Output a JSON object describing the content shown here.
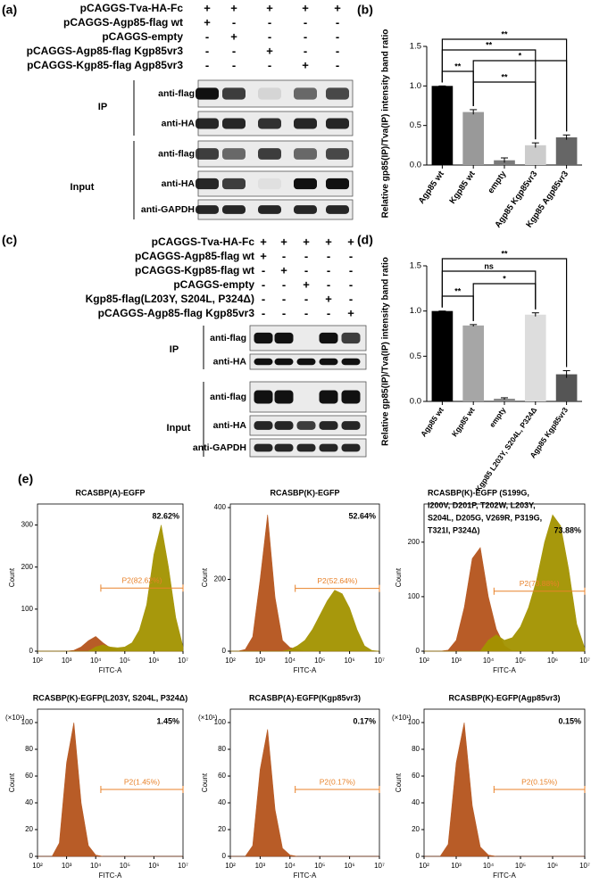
{
  "panel_a": {
    "label": "(a)",
    "rows": [
      {
        "name": "pCAGGS-Tva-HA-Fc",
        "signs": [
          "+",
          "+",
          "+",
          "+",
          "+"
        ]
      },
      {
        "name": "pCAGGS-Agp85-flag wt",
        "signs": [
          "+",
          "-",
          "-",
          "-",
          "-"
        ]
      },
      {
        "name": "pCAGGS-empty",
        "signs": [
          "-",
          "+",
          "-",
          "-",
          "-"
        ]
      },
      {
        "name": "pCAGGS-Agp85-flag Kgp85vr3",
        "signs": [
          "-",
          "-",
          "+",
          "-",
          "-"
        ]
      },
      {
        "name": "pCAGGS-Kgp85-flag Agp85vr3",
        "signs": [
          "-",
          "-",
          "-",
          "+",
          "-"
        ]
      }
    ],
    "sections": [
      {
        "name": "IP",
        "blots": [
          "anti-flag",
          "anti-HA"
        ]
      },
      {
        "name": "Input",
        "blots": [
          "anti-flag",
          "anti-HA",
          "anti-GAPDH"
        ]
      }
    ]
  },
  "panel_c": {
    "label": "(c)",
    "rows": [
      {
        "name": "pCAGGS-Tva-HA-Fc",
        "signs": [
          "+",
          "+",
          "+",
          "+",
          "+"
        ]
      },
      {
        "name": "pCAGGS-Agp85-flag wt",
        "signs": [
          "+",
          "-",
          "-",
          "-",
          "-"
        ]
      },
      {
        "name": "pCAGGS-Kgp85-flag wt",
        "signs": [
          "-",
          "+",
          "-",
          "-",
          "-"
        ]
      },
      {
        "name": "pCAGGS-empty",
        "signs": [
          "-",
          "-",
          "+",
          "-",
          "-"
        ]
      },
      {
        "name": "Kgp85-flag(L203Y, S204L, P324Δ)",
        "signs": [
          "-",
          "-",
          "-",
          "+",
          "-"
        ]
      },
      {
        "name": "pCAGGS-Agp85-flag Kgp85vr3",
        "signs": [
          "-",
          "-",
          "-",
          "-",
          "+"
        ]
      }
    ],
    "sections": [
      {
        "name": "IP",
        "blots": [
          "anti-flag",
          "anti-HA"
        ]
      },
      {
        "name": "Input",
        "blots": [
          "anti-flag",
          "anti-HA",
          "anti-GAPDH"
        ]
      }
    ]
  },
  "panel_e": {
    "label": "(e)"
  },
  "chart_data": [
    {
      "type": "bar",
      "panel_label": "(b)",
      "ylabel": "Relative gp85(IP)/Tva(IP) intensity band ratio",
      "categories": [
        "Agp85 wt",
        "Kgp85 wt",
        "empty",
        "Agp85 Kgp85vr3",
        "Kgp85 Agp85vr3"
      ],
      "values": [
        1.0,
        0.67,
        0.06,
        0.25,
        0.35
      ],
      "errors": [
        0,
        0.03,
        0.03,
        0.03,
        0.03
      ],
      "colors": [
        "#000000",
        "#999999",
        "#7a7a7a",
        "#cccccc",
        "#666666"
      ],
      "ylim": [
        0,
        1.5
      ],
      "yticks": [
        {
          "value": 0,
          "label": "0.0"
        },
        {
          "value": 0.5,
          "label": "0.5"
        },
        {
          "value": 1,
          "label": "1.0"
        },
        {
          "value": 1.5,
          "label": "1.5"
        }
      ],
      "significance": [
        {
          "from": 0,
          "to": 4,
          "label": "**"
        },
        {
          "from": 0,
          "to": 3,
          "label": "**"
        },
        {
          "from": 1,
          "to": 4,
          "label": "*"
        },
        {
          "from": 0,
          "to": 1,
          "label": "**"
        },
        {
          "from": 1,
          "to": 3,
          "label": "**"
        }
      ]
    },
    {
      "type": "bar",
      "panel_label": "(d)",
      "ylabel": "Relative gp85(IP)/Tva(IP) intensity band ratio",
      "categories": [
        "Agp85 wt",
        "Kgp85 wt",
        "empty",
        "Kgp85 L203Y, S204L, P324Δ",
        "Agp85 Kgp85vr3"
      ],
      "values": [
        1.0,
        0.84,
        0.03,
        0.96,
        0.3
      ],
      "errors": [
        0,
        0.01,
        0.01,
        0.02,
        0.04
      ],
      "colors": [
        "#000000",
        "#a6a6a6",
        "#8a8a8a",
        "#dddddd",
        "#555555"
      ],
      "ylim": [
        0,
        1.5
      ],
      "yticks": [
        {
          "value": 0,
          "label": "0.0"
        },
        {
          "value": 0.5,
          "label": "0.5"
        },
        {
          "value": 1,
          "label": "1.0"
        },
        {
          "value": 1.5,
          "label": "1.5"
        }
      ],
      "significance": [
        {
          "from": 0,
          "to": 4,
          "label": "**"
        },
        {
          "from": 0,
          "to": 3,
          "label": "ns"
        },
        {
          "from": 1,
          "to": 3,
          "label": "*"
        },
        {
          "from": 0,
          "to": 1,
          "label": "**"
        }
      ]
    },
    {
      "type": "area",
      "title": [
        "RCASBP(A)-EGFP"
      ],
      "percent": "82.62%",
      "xlabel": "FITC-A",
      "ylabel": "Count",
      "x": [
        100,
        178,
        316,
        562,
        1000,
        1778,
        3162,
        5623,
        10000,
        17783,
        31623,
        56234,
        100000,
        177828,
        316228,
        562341,
        1000000,
        1778279,
        3162278,
        5623413,
        10000000
      ],
      "series": [
        {
          "color": "#b5541c",
          "values": [
            0,
            0,
            0,
            0,
            0,
            2,
            10,
            25,
            35,
            20,
            8,
            3,
            0,
            0,
            0,
            0,
            0,
            0,
            0,
            0,
            0
          ]
        },
        {
          "color": "#a39300",
          "values": [
            0,
            0,
            0,
            0,
            0,
            0,
            0,
            0,
            10,
            15,
            10,
            8,
            10,
            20,
            50,
            110,
            230,
            300,
            200,
            80,
            10
          ]
        }
      ],
      "xlim": [
        100,
        10000000
      ],
      "xscale": "log",
      "xticks": [
        {
          "value": 100,
          "label": "10²"
        },
        {
          "value": 1000,
          "label": "10³"
        },
        {
          "value": 10000,
          "label": "10⁴"
        },
        {
          "value": 100000,
          "label": "10⁵"
        },
        {
          "value": 1000000,
          "label": "10⁶"
        },
        {
          "value": 10000000,
          "label": "10⁷"
        }
      ],
      "ylim": [
        0,
        350
      ],
      "yticks": [
        0,
        100,
        200,
        300
      ],
      "gate": {
        "label": "P2(82.62%)",
        "x": [
          15000,
          10000000
        ],
        "y": 150
      }
    },
    {
      "type": "area",
      "title": [
        "RCASBP(K)-EGFP"
      ],
      "percent": "52.64%",
      "xlabel": "FITC-A",
      "ylabel": "Count",
      "x": [
        100,
        178,
        316,
        562,
        1000,
        1778,
        3162,
        5623,
        10000,
        17783,
        31623,
        56234,
        100000,
        177828,
        316228,
        562341,
        1000000,
        1778279,
        3162278,
        5623413,
        10000000
      ],
      "series": [
        {
          "color": "#b5541c",
          "values": [
            0,
            0,
            5,
            40,
            200,
            380,
            150,
            30,
            10,
            5,
            0,
            0,
            0,
            0,
            0,
            0,
            0,
            0,
            0,
            0,
            0
          ]
        },
        {
          "color": "#a39300",
          "values": [
            0,
            0,
            0,
            0,
            0,
            0,
            0,
            0,
            5,
            15,
            30,
            60,
            100,
            140,
            170,
            160,
            120,
            60,
            15,
            2,
            0
          ]
        }
      ],
      "xlim": [
        100,
        10000000
      ],
      "xscale": "log",
      "xticks": [
        {
          "value": 100,
          "label": "10²"
        },
        {
          "value": 1000,
          "label": "10³"
        },
        {
          "value": 10000,
          "label": "10⁴"
        },
        {
          "value": 100000,
          "label": "10⁵"
        },
        {
          "value": 1000000,
          "label": "10⁶"
        },
        {
          "value": 10000000,
          "label": "10⁷"
        }
      ],
      "ylim": [
        0,
        410
      ],
      "yticks": [
        0,
        200,
        400
      ],
      "gate": {
        "label": "P2(52.64%)",
        "x": [
          15000,
          10000000
        ],
        "y": 175
      }
    },
    {
      "type": "area",
      "title": [
        "RCASBP(K)-EGFP (S199G,",
        "I200V, D201P, T202W, L203Y,",
        "S204L, D205G, V269R, P319G,",
        "T321I, P324Δ)"
      ],
      "percent": "73.88%",
      "xlabel": "FITC-A",
      "ylabel": "Count",
      "x": [
        100,
        178,
        316,
        562,
        1000,
        1778,
        3162,
        5623,
        10000,
        17783,
        31623,
        56234,
        100000,
        177828,
        316228,
        562341,
        1000000,
        1778279,
        3162278,
        5623413,
        10000000
      ],
      "series": [
        {
          "color": "#b5541c",
          "values": [
            0,
            0,
            0,
            2,
            20,
            80,
            170,
            190,
            100,
            40,
            10,
            0,
            0,
            0,
            0,
            0,
            0,
            0,
            0,
            0,
            0
          ]
        },
        {
          "color": "#a39300",
          "values": [
            0,
            0,
            0,
            0,
            0,
            0,
            0,
            0,
            20,
            30,
            20,
            25,
            45,
            80,
            130,
            200,
            250,
            230,
            150,
            50,
            5
          ]
        }
      ],
      "xlim": [
        100,
        10000000
      ],
      "xscale": "log",
      "xticks": [
        {
          "value": 100,
          "label": "10²"
        },
        {
          "value": 1000,
          "label": "10³"
        },
        {
          "value": 10000,
          "label": "10⁴"
        },
        {
          "value": 100000,
          "label": "10⁵"
        },
        {
          "value": 1000000,
          "label": "10⁶"
        },
        {
          "value": 10000000,
          "label": "10⁷"
        }
      ],
      "ylim": [
        0,
        270
      ],
      "yticks": [
        0,
        100,
        200
      ],
      "gate": {
        "label": "P2(73.88%)",
        "x": [
          15000,
          10000000
        ],
        "y": 110
      }
    },
    {
      "type": "area",
      "title": [
        "RCASBP(K)-EGFP(L203Y, S204L, P324Δ)"
      ],
      "percent": "1.45%",
      "xlabel": "FITC-A",
      "ylabel": "Count",
      "y_multiplier": "(×10¹)",
      "x": [
        100,
        178,
        316,
        562,
        1000,
        1778,
        3162,
        5623,
        10000,
        17783,
        31623,
        56234,
        100000,
        177828,
        316228,
        562341,
        1000000,
        1778279,
        3162278,
        5623413,
        10000000
      ],
      "series": [
        {
          "color": "#b5541c",
          "values": [
            0,
            0,
            0,
            10,
            70,
            100,
            40,
            8,
            1,
            0,
            0,
            0,
            0,
            0,
            0,
            0,
            0,
            0,
            0,
            0,
            0
          ]
        }
      ],
      "xlim": [
        100,
        10000000
      ],
      "xscale": "log",
      "xticks": [
        {
          "value": 100,
          "label": "10²"
        },
        {
          "value": 1000,
          "label": "10³"
        },
        {
          "value": 10000,
          "label": "10⁴"
        },
        {
          "value": 100000,
          "label": "10⁵"
        },
        {
          "value": 1000000,
          "label": "10⁶"
        },
        {
          "value": 10000000,
          "label": "10⁷"
        }
      ],
      "ylim": [
        0,
        110
      ],
      "yticks": [
        0,
        20,
        40,
        60,
        80,
        100
      ],
      "gate": {
        "label": "P2(1.45%)",
        "x": [
          15000,
          10000000
        ],
        "y": 50
      }
    },
    {
      "type": "area",
      "title": [
        "RCASBP(A)-EGFP(Kgp85vr3)"
      ],
      "percent": "0.17%",
      "xlabel": "FITC-A",
      "ylabel": "Count",
      "y_multiplier": "(×10¹)",
      "x": [
        100,
        178,
        316,
        562,
        1000,
        1778,
        3162,
        5623,
        10000,
        17783,
        31623,
        56234,
        100000,
        177828,
        316228,
        562341,
        1000000,
        1778279,
        3162278,
        5623413,
        10000000
      ],
      "series": [
        {
          "color": "#b5541c",
          "values": [
            0,
            0,
            0,
            8,
            65,
            95,
            35,
            6,
            1,
            0,
            0,
            0,
            0,
            0,
            0,
            0,
            0,
            0,
            0,
            0,
            0
          ]
        }
      ],
      "xlim": [
        100,
        10000000
      ],
      "xscale": "log",
      "xticks": [
        {
          "value": 100,
          "label": "10²"
        },
        {
          "value": 1000,
          "label": "10³"
        },
        {
          "value": 10000,
          "label": "10⁴"
        },
        {
          "value": 100000,
          "label": "10⁵"
        },
        {
          "value": 1000000,
          "label": "10⁶"
        },
        {
          "value": 10000000,
          "label": "10⁷"
        }
      ],
      "ylim": [
        0,
        110
      ],
      "yticks": [
        0,
        20,
        40,
        60,
        80,
        100
      ],
      "gate": {
        "label": "P2(0.17%)",
        "x": [
          15000,
          10000000
        ],
        "y": 50
      }
    },
    {
      "type": "area",
      "title": [
        "RCASBP(K)-EGFP(Agp85vr3)"
      ],
      "percent": "0.15%",
      "xlabel": "FITC-A",
      "ylabel": "Count",
      "y_multiplier": "(×10¹)",
      "x": [
        100,
        178,
        316,
        562,
        1000,
        1778,
        3162,
        5623,
        10000,
        17783,
        31623,
        56234,
        100000,
        177828,
        316228,
        562341,
        1000000,
        1778279,
        3162278,
        5623413,
        10000000
      ],
      "series": [
        {
          "color": "#b5541c",
          "values": [
            0,
            0,
            0,
            9,
            70,
            100,
            38,
            7,
            1,
            0,
            0,
            0,
            0,
            0,
            0,
            0,
            0,
            0,
            0,
            0,
            0
          ]
        }
      ],
      "xlim": [
        100,
        10000000
      ],
      "xscale": "log",
      "xticks": [
        {
          "value": 100,
          "label": "10²"
        },
        {
          "value": 1000,
          "label": "10³"
        },
        {
          "value": 10000,
          "label": "10⁴"
        },
        {
          "value": 100000,
          "label": "10⁵"
        },
        {
          "value": 1000000,
          "label": "10⁶"
        },
        {
          "value": 10000000,
          "label": "10⁷"
        }
      ],
      "ylim": [
        0,
        110
      ],
      "yticks": [
        0,
        20,
        40,
        60,
        80,
        100
      ],
      "gate": {
        "label": "P2(0.15%)",
        "x": [
          15000,
          10000000
        ],
        "y": 50
      }
    }
  ]
}
